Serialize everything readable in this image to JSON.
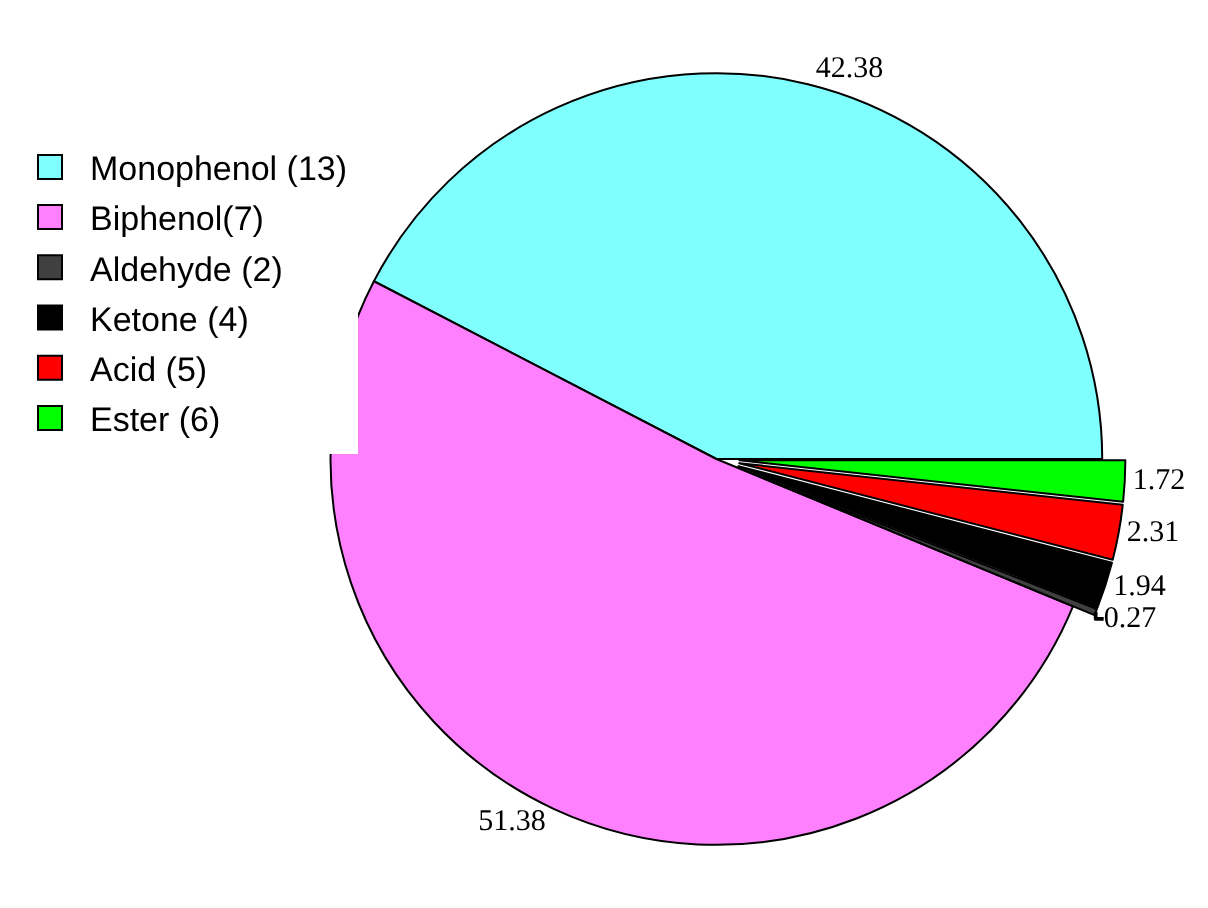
{
  "chart_data": {
    "type": "pie",
    "categories": [
      "Monophenol (13)",
      "Biphenol(7)",
      "Aldehyde (2)",
      "Ketone (4)",
      "Acid (5)",
      "Ester (6)"
    ],
    "values": [
      42.38,
      51.38,
      0.27,
      1.94,
      2.31,
      1.72
    ],
    "colors": [
      "#80ffff",
      "#ff80ff",
      "#404040",
      "#000000",
      "#ff0000",
      "#00ff00"
    ],
    "data_labels": true,
    "legend": "top left"
  }
}
